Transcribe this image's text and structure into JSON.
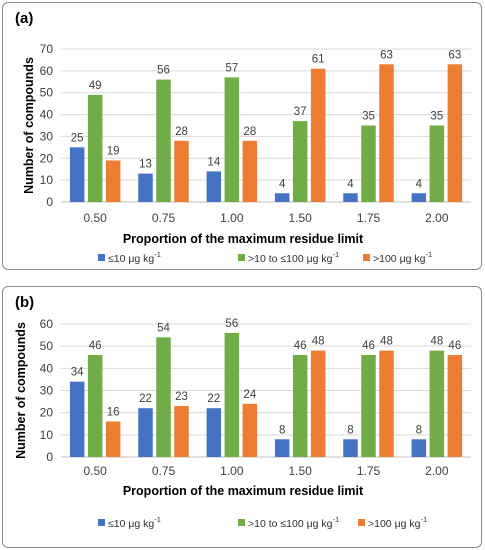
{
  "colors": {
    "low": "#4472C4",
    "mid": "#70AD47",
    "high": "#ED7D31",
    "grid": "#d9d9d9",
    "axis": "#bfbfbf"
  },
  "chart_data": [
    {
      "panel_label": "(a)",
      "type": "bar",
      "categories": [
        "0.50",
        "0.75",
        "1.00",
        "1.50",
        "1.75",
        "2.00"
      ],
      "series": [
        {
          "name": "≤10 μg kg",
          "name_sup": "-1",
          "color": "#4472C4",
          "values": [
            25,
            13,
            14,
            4,
            4,
            4
          ]
        },
        {
          "name": ">10 to ≤100 μg kg",
          "name_sup": "-1",
          "color": "#70AD47",
          "values": [
            49,
            56,
            57,
            37,
            35,
            35
          ]
        },
        {
          "name": ">100 μg kg",
          "name_sup": "-1",
          "color": "#ED7D31",
          "values": [
            19,
            28,
            28,
            61,
            63,
            63
          ]
        }
      ],
      "xlabel": "Proportion of the maximum residue limit",
      "ylabel": "Number of compounds",
      "ylim": [
        0,
        70
      ],
      "yticks": [
        0,
        10,
        20,
        30,
        40,
        50,
        60,
        70
      ],
      "grid": true,
      "legend": "bottom"
    },
    {
      "panel_label": "(b)",
      "type": "bar",
      "categories": [
        "0.50",
        "0.75",
        "1.00",
        "1.50",
        "1.75",
        "2.00"
      ],
      "series": [
        {
          "name": "≤10 μg kg",
          "name_sup": "-1",
          "color": "#4472C4",
          "values": [
            34,
            22,
            22,
            8,
            8,
            8
          ]
        },
        {
          "name": ">10 to ≤100 μg kg",
          "name_sup": "-1",
          "color": "#70AD47",
          "values": [
            46,
            54,
            56,
            46,
            46,
            48
          ]
        },
        {
          "name": ">100 μg kg",
          "name_sup": "-1",
          "color": "#ED7D31",
          "values": [
            16,
            23,
            24,
            48,
            48,
            46
          ]
        }
      ],
      "xlabel": "Proportion of the maximum residue limit",
      "ylabel": "Number of compounds",
      "ylim": [
        0,
        60
      ],
      "yticks": [
        0,
        10,
        20,
        30,
        40,
        50,
        60
      ],
      "grid": true,
      "legend": "bottom"
    }
  ]
}
